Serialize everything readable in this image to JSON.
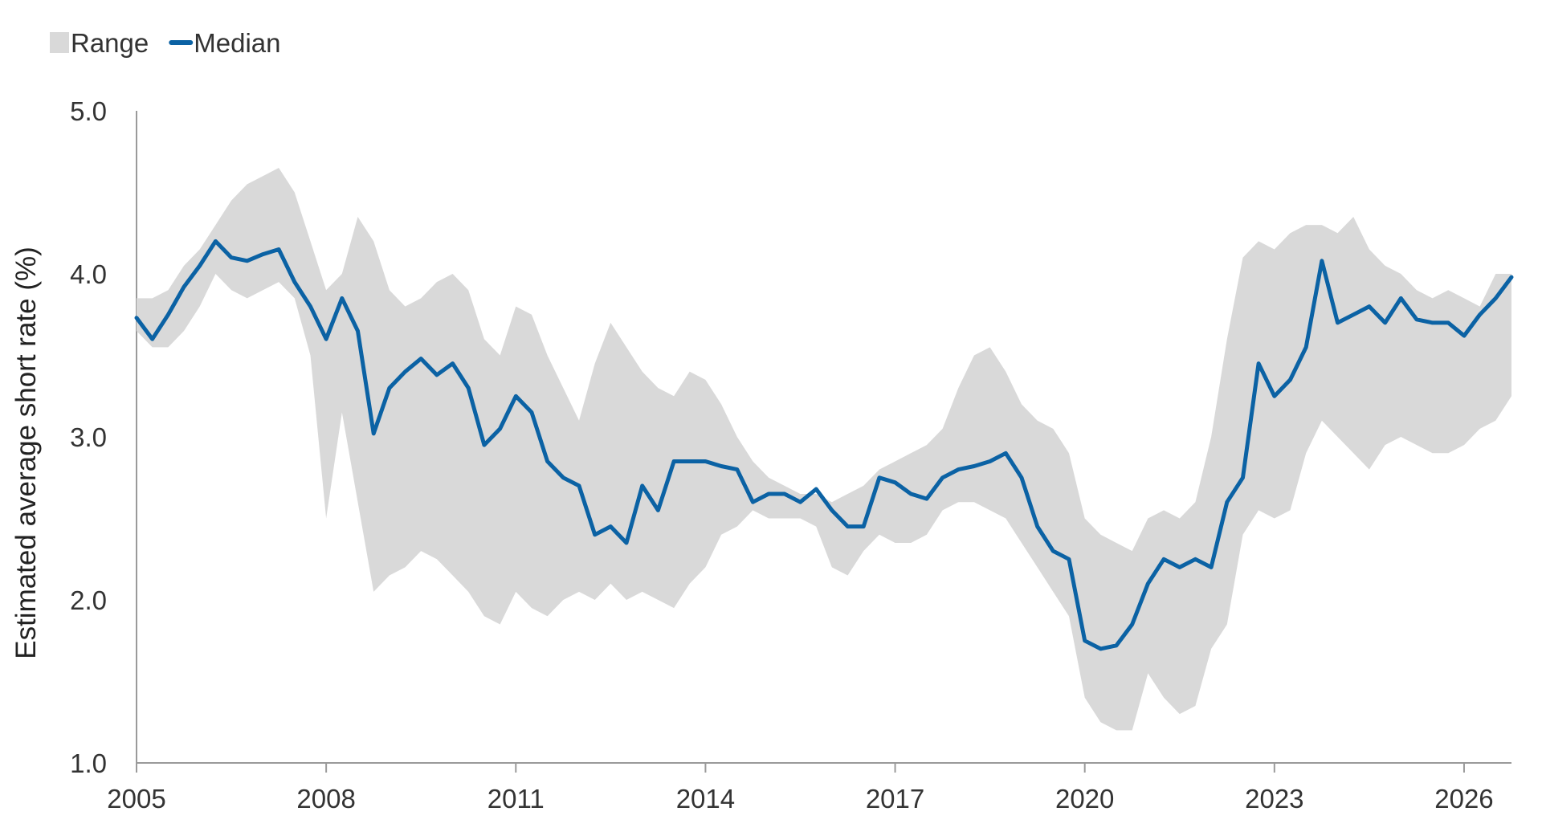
{
  "chart_data": {
    "type": "area",
    "title": "",
    "ylabel": "Estimated average short rate (%)",
    "xlabel": "",
    "xlim": [
      2005.0,
      2026.75
    ],
    "ylim": [
      1.0,
      5.0
    ],
    "x_ticks": [
      2005,
      2008,
      2011,
      2014,
      2017,
      2020,
      2023,
      2026
    ],
    "x_tick_labels": [
      "2005",
      "2008",
      "2011",
      "2014",
      "2017",
      "2020",
      "2023",
      "2026"
    ],
    "y_ticks": [
      1.0,
      2.0,
      3.0,
      4.0,
      5.0
    ],
    "y_tick_labels": [
      "1.0",
      "2.0",
      "3.0",
      "4.0",
      "5.0"
    ],
    "grid": false,
    "legend": {
      "position": "top-left",
      "entries": [
        {
          "label": "Range",
          "kind": "area",
          "color": "#d9d9d9"
        },
        {
          "label": "Median",
          "kind": "line",
          "color": "#0b62a4"
        }
      ]
    },
    "series": [
      {
        "name": "Range",
        "kind": "band",
        "color": "#d9d9d9",
        "x": [
          2005.0,
          2005.25,
          2005.5,
          2005.75,
          2006.0,
          2006.25,
          2006.5,
          2006.75,
          2007.0,
          2007.25,
          2007.5,
          2007.75,
          2008.0,
          2008.25,
          2008.5,
          2008.75,
          2009.0,
          2009.25,
          2009.5,
          2009.75,
          2010.0,
          2010.25,
          2010.5,
          2010.75,
          2011.0,
          2011.25,
          2011.5,
          2011.75,
          2012.0,
          2012.25,
          2012.5,
          2012.75,
          2013.0,
          2013.25,
          2013.5,
          2013.75,
          2014.0,
          2014.25,
          2014.5,
          2014.75,
          2015.0,
          2015.25,
          2015.5,
          2015.75,
          2016.0,
          2016.25,
          2016.5,
          2016.75,
          2017.0,
          2017.25,
          2017.5,
          2017.75,
          2018.0,
          2018.25,
          2018.5,
          2018.75,
          2019.0,
          2019.25,
          2019.5,
          2019.75,
          2020.0,
          2020.25,
          2020.5,
          2020.75,
          2021.0,
          2021.25,
          2021.5,
          2021.75,
          2022.0,
          2022.25,
          2022.5,
          2022.75,
          2023.0,
          2023.25,
          2023.5,
          2023.75,
          2024.0,
          2024.25,
          2024.5,
          2024.75,
          2025.0,
          2025.25,
          2025.5,
          2025.75,
          2026.0,
          2026.25,
          2026.5,
          2026.75
        ],
        "high": [
          3.85,
          3.85,
          3.9,
          4.05,
          4.15,
          4.3,
          4.45,
          4.55,
          4.6,
          4.65,
          4.5,
          4.2,
          3.9,
          4.0,
          4.35,
          4.2,
          3.9,
          3.8,
          3.85,
          3.95,
          4.0,
          3.9,
          3.6,
          3.5,
          3.8,
          3.75,
          3.5,
          3.3,
          3.1,
          3.45,
          3.7,
          3.55,
          3.4,
          3.3,
          3.25,
          3.4,
          3.35,
          3.2,
          3.0,
          2.85,
          2.75,
          2.7,
          2.65,
          2.65,
          2.6,
          2.65,
          2.7,
          2.8,
          2.85,
          2.9,
          2.95,
          3.05,
          3.3,
          3.5,
          3.55,
          3.4,
          3.2,
          3.1,
          3.05,
          2.9,
          2.5,
          2.4,
          2.35,
          2.3,
          2.5,
          2.55,
          2.5,
          2.6,
          3.0,
          3.6,
          4.1,
          4.2,
          4.15,
          4.25,
          4.3,
          4.3,
          4.25,
          4.35,
          4.15,
          4.05,
          4.0,
          3.9,
          3.85,
          3.9,
          3.85,
          3.8,
          4.0,
          4.0
        ],
        "low": [
          3.65,
          3.55,
          3.55,
          3.65,
          3.8,
          4.0,
          3.9,
          3.85,
          3.9,
          3.95,
          3.85,
          3.5,
          2.5,
          3.15,
          2.6,
          2.05,
          2.15,
          2.2,
          2.3,
          2.25,
          2.15,
          2.05,
          1.9,
          1.85,
          2.05,
          1.95,
          1.9,
          2.0,
          2.05,
          2.0,
          2.1,
          2.0,
          2.05,
          2.0,
          1.95,
          2.1,
          2.2,
          2.4,
          2.45,
          2.55,
          2.5,
          2.5,
          2.5,
          2.45,
          2.2,
          2.15,
          2.3,
          2.4,
          2.35,
          2.35,
          2.4,
          2.55,
          2.6,
          2.6,
          2.55,
          2.5,
          2.35,
          2.2,
          2.05,
          1.9,
          1.4,
          1.25,
          1.2,
          1.2,
          1.55,
          1.4,
          1.3,
          1.35,
          1.7,
          1.85,
          2.4,
          2.55,
          2.5,
          2.55,
          2.9,
          3.1,
          3.0,
          2.9,
          2.8,
          2.95,
          3.0,
          2.95,
          2.9,
          2.9,
          2.95,
          3.05,
          3.1,
          3.25
        ]
      },
      {
        "name": "Median",
        "kind": "line",
        "color": "#0b62a4",
        "x": [
          2005.0,
          2005.25,
          2005.5,
          2005.75,
          2006.0,
          2006.25,
          2006.5,
          2006.75,
          2007.0,
          2007.25,
          2007.5,
          2007.75,
          2008.0,
          2008.25,
          2008.5,
          2008.75,
          2009.0,
          2009.25,
          2009.5,
          2009.75,
          2010.0,
          2010.25,
          2010.5,
          2010.75,
          2011.0,
          2011.25,
          2011.5,
          2011.75,
          2012.0,
          2012.25,
          2012.5,
          2012.75,
          2013.0,
          2013.25,
          2013.5,
          2013.75,
          2014.0,
          2014.25,
          2014.5,
          2014.75,
          2015.0,
          2015.25,
          2015.5,
          2015.75,
          2016.0,
          2016.25,
          2016.5,
          2016.75,
          2017.0,
          2017.25,
          2017.5,
          2017.75,
          2018.0,
          2018.25,
          2018.5,
          2018.75,
          2019.0,
          2019.25,
          2019.5,
          2019.75,
          2020.0,
          2020.25,
          2020.5,
          2020.75,
          2021.0,
          2021.25,
          2021.5,
          2021.75,
          2022.0,
          2022.25,
          2022.5,
          2022.75,
          2023.0,
          2023.25,
          2023.5,
          2023.75,
          2024.0,
          2024.25,
          2024.5,
          2024.75,
          2025.0,
          2025.25,
          2025.5,
          2025.75,
          2026.0,
          2026.25,
          2026.5,
          2026.75
        ],
        "values": [
          3.73,
          3.6,
          3.75,
          3.92,
          4.05,
          4.2,
          4.1,
          4.08,
          4.12,
          4.15,
          3.95,
          3.8,
          3.6,
          3.85,
          3.65,
          3.02,
          3.3,
          3.4,
          3.48,
          3.38,
          3.45,
          3.3,
          2.95,
          3.05,
          3.25,
          3.15,
          2.85,
          2.75,
          2.7,
          2.4,
          2.45,
          2.35,
          2.7,
          2.55,
          2.85,
          2.85,
          2.85,
          2.82,
          2.8,
          2.6,
          2.65,
          2.65,
          2.6,
          2.68,
          2.55,
          2.45,
          2.45,
          2.75,
          2.72,
          2.65,
          2.62,
          2.75,
          2.8,
          2.82,
          2.85,
          2.9,
          2.75,
          2.45,
          2.3,
          2.25,
          1.75,
          1.7,
          1.72,
          1.85,
          2.1,
          2.25,
          2.2,
          2.25,
          2.2,
          2.6,
          2.75,
          3.45,
          3.25,
          3.35,
          3.55,
          4.08,
          3.7,
          3.75,
          3.8,
          3.7,
          3.85,
          3.72,
          3.7,
          3.7,
          3.62,
          3.75,
          3.85,
          3.98
        ]
      }
    ]
  }
}
